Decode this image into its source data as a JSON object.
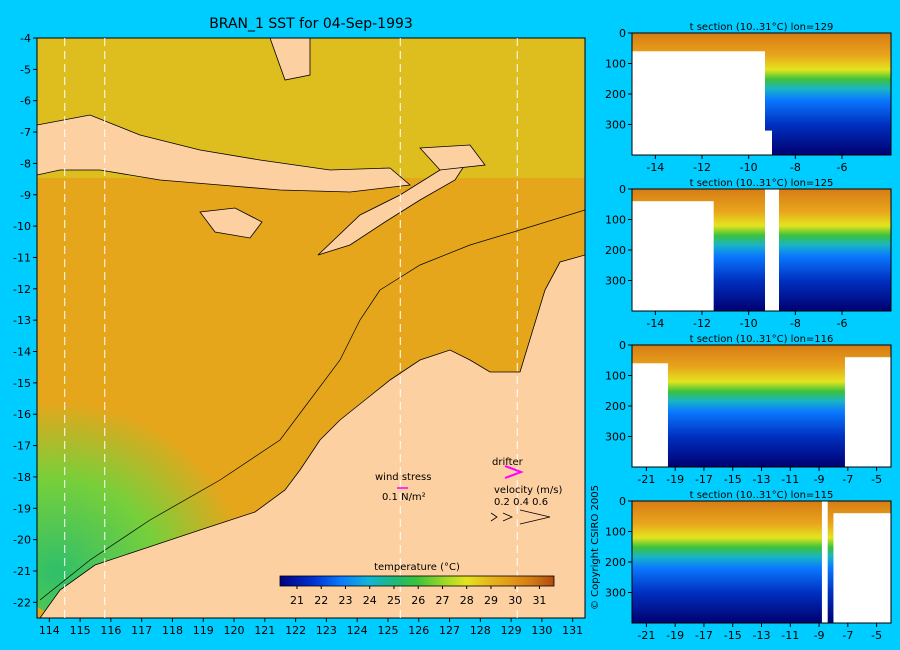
{
  "figure": {
    "copyright": "© Copyright CSIRO 2005"
  },
  "colors": {
    "background": "#00cdff",
    "land": "#fdd0a2",
    "temp_scale": [
      "#000080",
      "#0030d0",
      "#0a78ff",
      "#10b4d8",
      "#1fb877",
      "#3cc23c",
      "#9ed828",
      "#e4e41e",
      "#e6b81c",
      "#e29a18",
      "#d27a14",
      "#b04a10"
    ]
  },
  "chart_data": [
    {
      "type": "heatmap",
      "title": "BRAN_1 SST for 04-Sep-1993",
      "xlim": [
        113.6,
        131.4
      ],
      "ylim": [
        -22.5,
        -4
      ],
      "x_ticks": [
        114,
        115,
        116,
        117,
        118,
        119,
        120,
        121,
        122,
        123,
        124,
        125,
        126,
        127,
        128,
        129,
        130,
        131
      ],
      "y_ticks": [
        -4,
        -5,
        -6,
        -7,
        -8,
        -9,
        -10,
        -11,
        -12,
        -13,
        -14,
        -15,
        -16,
        -17,
        -18,
        -19,
        -20,
        -21,
        -22
      ],
      "section_lon_lines": [
        114.5,
        115.8,
        125.4,
        129.2
      ],
      "colorbar": {
        "label": "temperature (°C)",
        "ticks": [
          21,
          22,
          23,
          24,
          25,
          26,
          27,
          28,
          29,
          30,
          31
        ],
        "range": [
          20.3,
          31.6
        ]
      },
      "legend": {
        "wind_stress_label": "wind stress",
        "wind_stress_value": "0.1 N/m²",
        "drifter_label": "drifter",
        "velocity_label": "velocity (m/s)",
        "velocity_values": "0.2 0.4 0.6"
      }
    },
    {
      "type": "heatmap",
      "title": "t section (10..31°C) lon=129",
      "xlim": [
        -15,
        -3.9
      ],
      "ylim": [
        400,
        0
      ],
      "x_ticks": [
        -14,
        -12,
        -10,
        -8,
        -6
      ],
      "y_ticks": [
        0,
        100,
        200,
        300
      ],
      "land": [
        [
          -15,
          -9.3,
          60
        ],
        [
          -9.3,
          -9.0,
          320
        ]
      ]
    },
    {
      "type": "heatmap",
      "title": "t section (10..31°C) lon=125",
      "xlim": [
        -15,
        -3.9
      ],
      "ylim": [
        400,
        0
      ],
      "x_ticks": [
        -14,
        -12,
        -10,
        -8,
        -6
      ],
      "y_ticks": [
        0,
        100,
        200,
        300
      ],
      "land": [
        [
          -15,
          -11.5,
          40
        ],
        [
          -9.3,
          -8.7,
          0
        ]
      ]
    },
    {
      "type": "heatmap",
      "title": "t section (10..31°C) lon=116",
      "xlim": [
        -22,
        -4
      ],
      "ylim": [
        400,
        0
      ],
      "x_ticks": [
        -21,
        -19,
        -17,
        -15,
        -13,
        -11,
        -9,
        -7,
        -5
      ],
      "y_ticks": [
        0,
        100,
        200,
        300
      ],
      "land": [
        [
          -22,
          -19.5,
          60
        ],
        [
          -7.2,
          -4,
          40
        ]
      ]
    },
    {
      "type": "heatmap",
      "title": "t section (10..31°C) lon=115",
      "xlim": [
        -22,
        -4
      ],
      "ylim": [
        400,
        0
      ],
      "x_ticks": [
        -21,
        -19,
        -17,
        -15,
        -13,
        -11,
        -9,
        -7,
        -5
      ],
      "y_ticks": [
        0,
        100,
        200,
        300
      ],
      "land": [
        [
          -8.8,
          -8.4,
          0
        ],
        [
          -8.0,
          -4,
          40
        ]
      ]
    }
  ]
}
